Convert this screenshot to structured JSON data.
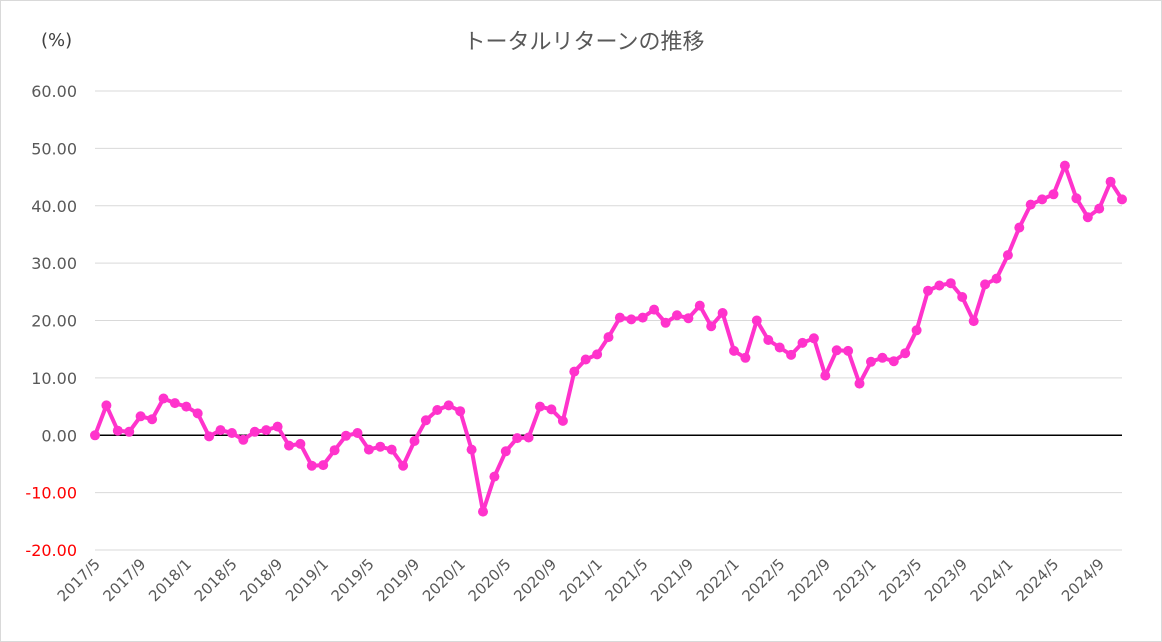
{
  "chart_data": {
    "type": "line",
    "title": "トータルリターンの推移",
    "unit_label": "(%)",
    "ylim": [
      -20,
      60
    ],
    "yticks": [
      "60.00",
      "50.00",
      "40.00",
      "30.00",
      "20.00",
      "10.00",
      "0.00",
      "-10.00",
      "-20.00"
    ],
    "ytick_values": [
      60,
      50,
      40,
      30,
      20,
      10,
      0,
      -10,
      -20
    ],
    "negative_tick_color": "#ff0000",
    "line_color": "#ff33cc",
    "zero_line_color": "#000000",
    "grid": true,
    "legend": "none",
    "x_tick_labels": [
      "2017/5",
      "2017/9",
      "2018/1",
      "2018/5",
      "2018/9",
      "2019/1",
      "2019/5",
      "2019/9",
      "2020/1",
      "2020/5",
      "2020/9",
      "2021/1",
      "2021/5",
      "2021/9",
      "2022/1",
      "2022/5",
      "2022/9",
      "2023/1",
      "2023/5",
      "2023/9",
      "2024/1",
      "2024/5",
      "2024/9"
    ],
    "x": [
      "2017/5",
      "2017/6",
      "2017/7",
      "2017/8",
      "2017/9",
      "2017/10",
      "2017/11",
      "2017/12",
      "2018/1",
      "2018/2",
      "2018/3",
      "2018/4",
      "2018/5",
      "2018/6",
      "2018/7",
      "2018/8",
      "2018/9",
      "2018/10",
      "2018/11",
      "2018/12",
      "2019/1",
      "2019/2",
      "2019/3",
      "2019/4",
      "2019/5",
      "2019/6",
      "2019/7",
      "2019/8",
      "2019/9",
      "2019/10",
      "2019/11",
      "2019/12",
      "2020/1",
      "2020/2",
      "2020/3",
      "2020/4",
      "2020/5",
      "2020/6",
      "2020/7",
      "2020/8",
      "2020/9",
      "2020/10",
      "2020/11",
      "2020/12",
      "2021/1",
      "2021/2",
      "2021/3",
      "2021/4",
      "2021/5",
      "2021/6",
      "2021/7",
      "2021/8",
      "2021/9",
      "2021/10",
      "2021/11",
      "2021/12",
      "2022/1",
      "2022/2",
      "2022/3",
      "2022/4",
      "2022/5",
      "2022/6",
      "2022/7",
      "2022/8",
      "2022/9",
      "2022/10",
      "2022/11",
      "2022/12",
      "2023/1",
      "2023/2",
      "2023/3",
      "2023/4",
      "2023/5",
      "2023/6",
      "2023/7",
      "2023/8",
      "2023/9",
      "2023/10",
      "2023/11",
      "2023/12",
      "2024/1",
      "2024/2",
      "2024/3",
      "2024/4",
      "2024/5",
      "2024/6",
      "2024/7",
      "2024/8",
      "2024/9",
      "2024/10",
      "2024/11"
    ],
    "values": [
      0.0,
      5.2,
      0.8,
      0.6,
      3.3,
      2.8,
      6.4,
      5.6,
      5.0,
      3.8,
      -0.2,
      0.9,
      0.4,
      -0.8,
      0.6,
      0.9,
      1.5,
      -1.8,
      -1.5,
      -5.3,
      -5.2,
      -2.6,
      -0.1,
      0.4,
      -2.5,
      -2.0,
      -2.5,
      -5.3,
      -1.0,
      2.6,
      4.4,
      5.2,
      4.2,
      -2.5,
      -13.3,
      -7.2,
      -2.8,
      -0.5,
      -0.4,
      5.0,
      4.5,
      2.5,
      11.1,
      13.2,
      14.1,
      17.1,
      20.5,
      20.2,
      20.5,
      21.9,
      19.6,
      20.9,
      20.4,
      22.6,
      19.0,
      21.3,
      14.7,
      13.5,
      20.0,
      16.6,
      15.3,
      14.0,
      16.1,
      16.9,
      10.4,
      14.8,
      14.7,
      9.0,
      12.8,
      13.5,
      12.9,
      14.3,
      18.3,
      25.2,
      26.1,
      26.5,
      24.1,
      19.9,
      26.3,
      27.3,
      31.4,
      36.2,
      40.2,
      41.1,
      42.0,
      47.0,
      41.3,
      38.0,
      39.5,
      44.2,
      41.1
    ]
  }
}
